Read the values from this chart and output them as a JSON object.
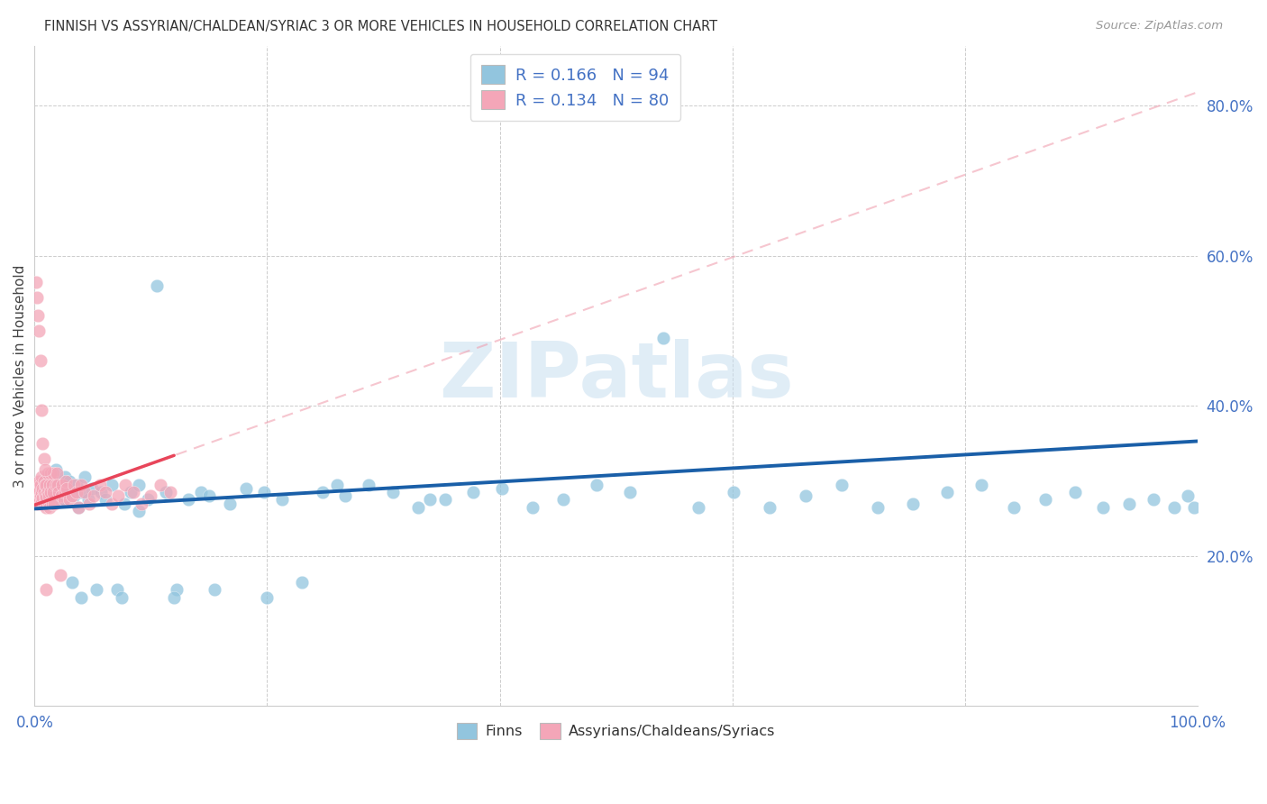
{
  "title": "FINNISH VS ASSYRIAN/CHALDEAN/SYRIAC 3 OR MORE VEHICLES IN HOUSEHOLD CORRELATION CHART",
  "source": "Source: ZipAtlas.com",
  "ylabel": "3 or more Vehicles in Household",
  "color_blue": "#92c5de",
  "color_pink": "#f4a6b8",
  "trendline_blue": "#1a5fa8",
  "trendline_pink": "#e8455a",
  "trendline_pink_dash": "#f0a0b0",
  "watermark_text": "ZIPatlas",
  "watermark_color": "#c8dff0",
  "finn_x": [
    0.002,
    0.004,
    0.006,
    0.007,
    0.008,
    0.009,
    0.01,
    0.01,
    0.011,
    0.012,
    0.013,
    0.014,
    0.015,
    0.016,
    0.017,
    0.018,
    0.019,
    0.02,
    0.021,
    0.022,
    0.023,
    0.024,
    0.025,
    0.026,
    0.027,
    0.028,
    0.03,
    0.032,
    0.034,
    0.036,
    0.038,
    0.04,
    0.043,
    0.046,
    0.049,
    0.053,
    0.057,
    0.061,
    0.066,
    0.071,
    0.077,
    0.083,
    0.09,
    0.097,
    0.105,
    0.113,
    0.122,
    0.132,
    0.143,
    0.155,
    0.168,
    0.182,
    0.197,
    0.213,
    0.23,
    0.248,
    0.267,
    0.287,
    0.308,
    0.33,
    0.353,
    0.377,
    0.402,
    0.428,
    0.455,
    0.483,
    0.512,
    0.541,
    0.571,
    0.601,
    0.632,
    0.663,
    0.694,
    0.725,
    0.755,
    0.785,
    0.814,
    0.842,
    0.869,
    0.895,
    0.919,
    0.941,
    0.962,
    0.98,
    0.992,
    0.997,
    0.26,
    0.15,
    0.09,
    0.04,
    0.34,
    0.2,
    0.12,
    0.075
  ],
  "finn_y": [
    0.285,
    0.278,
    0.292,
    0.27,
    0.3,
    0.283,
    0.275,
    0.295,
    0.288,
    0.305,
    0.272,
    0.29,
    0.282,
    0.298,
    0.275,
    0.315,
    0.285,
    0.272,
    0.295,
    0.28,
    0.3,
    0.275,
    0.29,
    0.305,
    0.278,
    0.285,
    0.3,
    0.165,
    0.28,
    0.295,
    0.265,
    0.285,
    0.305,
    0.275,
    0.29,
    0.155,
    0.285,
    0.275,
    0.295,
    0.155,
    0.27,
    0.285,
    0.295,
    0.275,
    0.56,
    0.285,
    0.155,
    0.275,
    0.285,
    0.155,
    0.27,
    0.29,
    0.285,
    0.275,
    0.165,
    0.285,
    0.28,
    0.295,
    0.285,
    0.265,
    0.275,
    0.285,
    0.29,
    0.265,
    0.275,
    0.295,
    0.285,
    0.49,
    0.265,
    0.285,
    0.265,
    0.28,
    0.295,
    0.265,
    0.27,
    0.285,
    0.295,
    0.265,
    0.275,
    0.285,
    0.265,
    0.27,
    0.275,
    0.265,
    0.28,
    0.265,
    0.295,
    0.28,
    0.26,
    0.145,
    0.275,
    0.145,
    0.145,
    0.145
  ],
  "assyr_x": [
    0.001,
    0.001,
    0.002,
    0.002,
    0.002,
    0.003,
    0.003,
    0.003,
    0.004,
    0.004,
    0.004,
    0.005,
    0.005,
    0.005,
    0.006,
    0.006,
    0.006,
    0.007,
    0.007,
    0.008,
    0.008,
    0.008,
    0.009,
    0.009,
    0.01,
    0.01,
    0.01,
    0.011,
    0.011,
    0.012,
    0.012,
    0.013,
    0.013,
    0.014,
    0.014,
    0.015,
    0.015,
    0.016,
    0.016,
    0.017,
    0.018,
    0.019,
    0.02,
    0.021,
    0.022,
    0.023,
    0.024,
    0.025,
    0.026,
    0.027,
    0.028,
    0.03,
    0.032,
    0.034,
    0.036,
    0.038,
    0.04,
    0.043,
    0.047,
    0.051,
    0.056,
    0.061,
    0.066,
    0.072,
    0.078,
    0.085,
    0.092,
    0.1,
    0.108,
    0.117,
    0.001,
    0.002,
    0.003,
    0.004,
    0.005,
    0.006,
    0.007,
    0.008,
    0.009,
    0.01
  ],
  "assyr_y": [
    0.28,
    0.29,
    0.295,
    0.285,
    0.275,
    0.292,
    0.278,
    0.27,
    0.3,
    0.285,
    0.275,
    0.295,
    0.28,
    0.27,
    0.305,
    0.285,
    0.275,
    0.29,
    0.278,
    0.3,
    0.285,
    0.27,
    0.295,
    0.28,
    0.295,
    0.278,
    0.265,
    0.285,
    0.31,
    0.28,
    0.27,
    0.295,
    0.265,
    0.31,
    0.285,
    0.295,
    0.27,
    0.31,
    0.285,
    0.27,
    0.295,
    0.31,
    0.295,
    0.285,
    0.175,
    0.28,
    0.295,
    0.275,
    0.285,
    0.3,
    0.29,
    0.275,
    0.28,
    0.295,
    0.285,
    0.265,
    0.295,
    0.285,
    0.27,
    0.28,
    0.295,
    0.285,
    0.27,
    0.28,
    0.295,
    0.285,
    0.27,
    0.28,
    0.295,
    0.285,
    0.565,
    0.545,
    0.52,
    0.5,
    0.46,
    0.395,
    0.35,
    0.33,
    0.315,
    0.155
  ],
  "xlim": [
    0.0,
    1.0
  ],
  "ylim": [
    0.0,
    0.88
  ],
  "xtick_pos": [
    0.0,
    0.2,
    0.4,
    0.6,
    0.8,
    1.0
  ],
  "xtick_labels": [
    "0.0%",
    "",
    "",
    "",
    "",
    "100.0%"
  ],
  "ytick_pos": [
    0.0,
    0.2,
    0.4,
    0.6,
    0.8
  ],
  "ytick_labels": [
    "",
    "20.0%",
    "40.0%",
    "60.0%",
    "80.0%"
  ],
  "tick_color": "#4472c4",
  "legend1_label": "R = 0.166   N = 94",
  "legend2_label": "R = 0.134   N = 80"
}
